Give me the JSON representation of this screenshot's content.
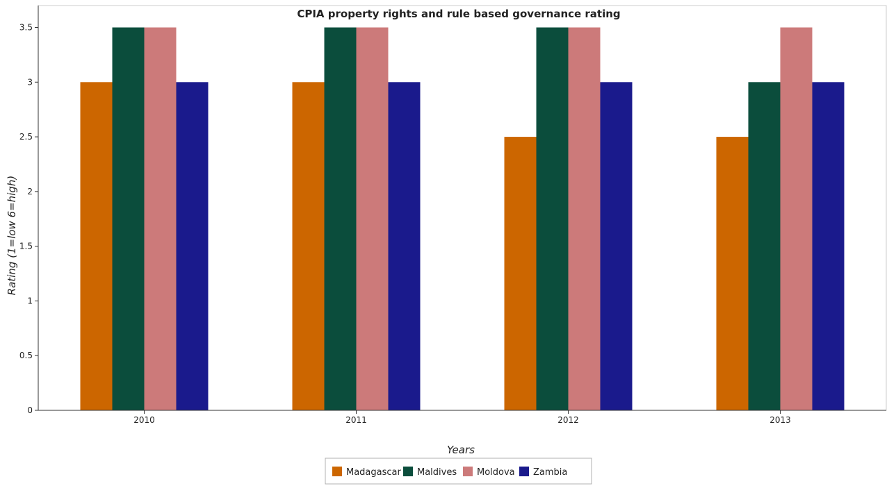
{
  "chart_data": {
    "type": "bar",
    "title": "CPIA property rights and rule based governance rating",
    "xlabel": "Years",
    "ylabel": "Rating (1=low 6=high)",
    "categories": [
      "2010",
      "2011",
      "2012",
      "2013"
    ],
    "series": [
      {
        "name": "Madagascar",
        "color": "#cc6600",
        "values": [
          3.0,
          3.0,
          2.5,
          2.5
        ]
      },
      {
        "name": "Maldives",
        "color": "#0b4d3c",
        "values": [
          3.5,
          3.5,
          3.5,
          3.0
        ]
      },
      {
        "name": "Moldova",
        "color": "#cc7a7a",
        "values": [
          3.5,
          3.5,
          3.5,
          3.5
        ]
      },
      {
        "name": "Zambia",
        "color": "#1a1a8c",
        "values": [
          3.0,
          3.0,
          3.0,
          3.0
        ]
      }
    ],
    "ylim": [
      0,
      3.7
    ],
    "yticks": [
      0,
      0.5,
      1,
      1.5,
      2,
      2.5,
      3,
      3.5
    ],
    "ytick_labels": [
      "0",
      "0.5",
      "1",
      "1.5",
      "2",
      "2.5",
      "3",
      "3.5"
    ],
    "grid": false,
    "legend_position": "bottom-center"
  }
}
